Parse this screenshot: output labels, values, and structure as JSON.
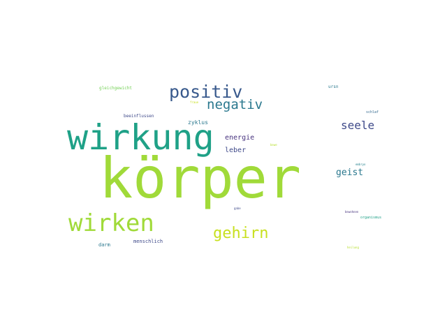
{
  "words": [
    {
      "text": "körper",
      "color": "#a0da39"
    },
    {
      "text": "wirkung",
      "color": "#1fa187"
    },
    {
      "text": "wirken",
      "color": "#a0da39"
    },
    {
      "text": "positiv",
      "color": "#38598c"
    },
    {
      "text": "negativ",
      "color": "#2a788e"
    },
    {
      "text": "gehirn",
      "color": "#c8e020"
    },
    {
      "text": "seele",
      "color": "#3e4989"
    },
    {
      "text": "geist",
      "color": "#2a788e"
    },
    {
      "text": "energie",
      "color": "#46327e"
    },
    {
      "text": "leber",
      "color": "#3e4989"
    },
    {
      "text": "zyklus",
      "color": "#2a788e"
    },
    {
      "text": "menschlich",
      "color": "#3e4989"
    },
    {
      "text": "darm",
      "color": "#2a788e"
    },
    {
      "text": "gleichgewicht",
      "color": "#73d055"
    },
    {
      "text": "beeinflussen",
      "color": "#3e4989"
    },
    {
      "text": "ursn",
      "color": "#2a788e"
    },
    {
      "text": "schlaf",
      "color": "#31688e"
    },
    {
      "text": "organismus",
      "color": "#1fa187"
    },
    {
      "text": "embryo",
      "color": "#26828e"
    },
    {
      "text": "bewohnen",
      "color": "#46327e"
    },
    {
      "text": "heilung",
      "color": "#b5de2b"
    },
    {
      "text": "gabe",
      "color": "#3e4989"
    },
    {
      "text": "fraue",
      "color": "#c8e020"
    },
    {
      "text": "bewe",
      "color": "#b5de2b"
    }
  ]
}
